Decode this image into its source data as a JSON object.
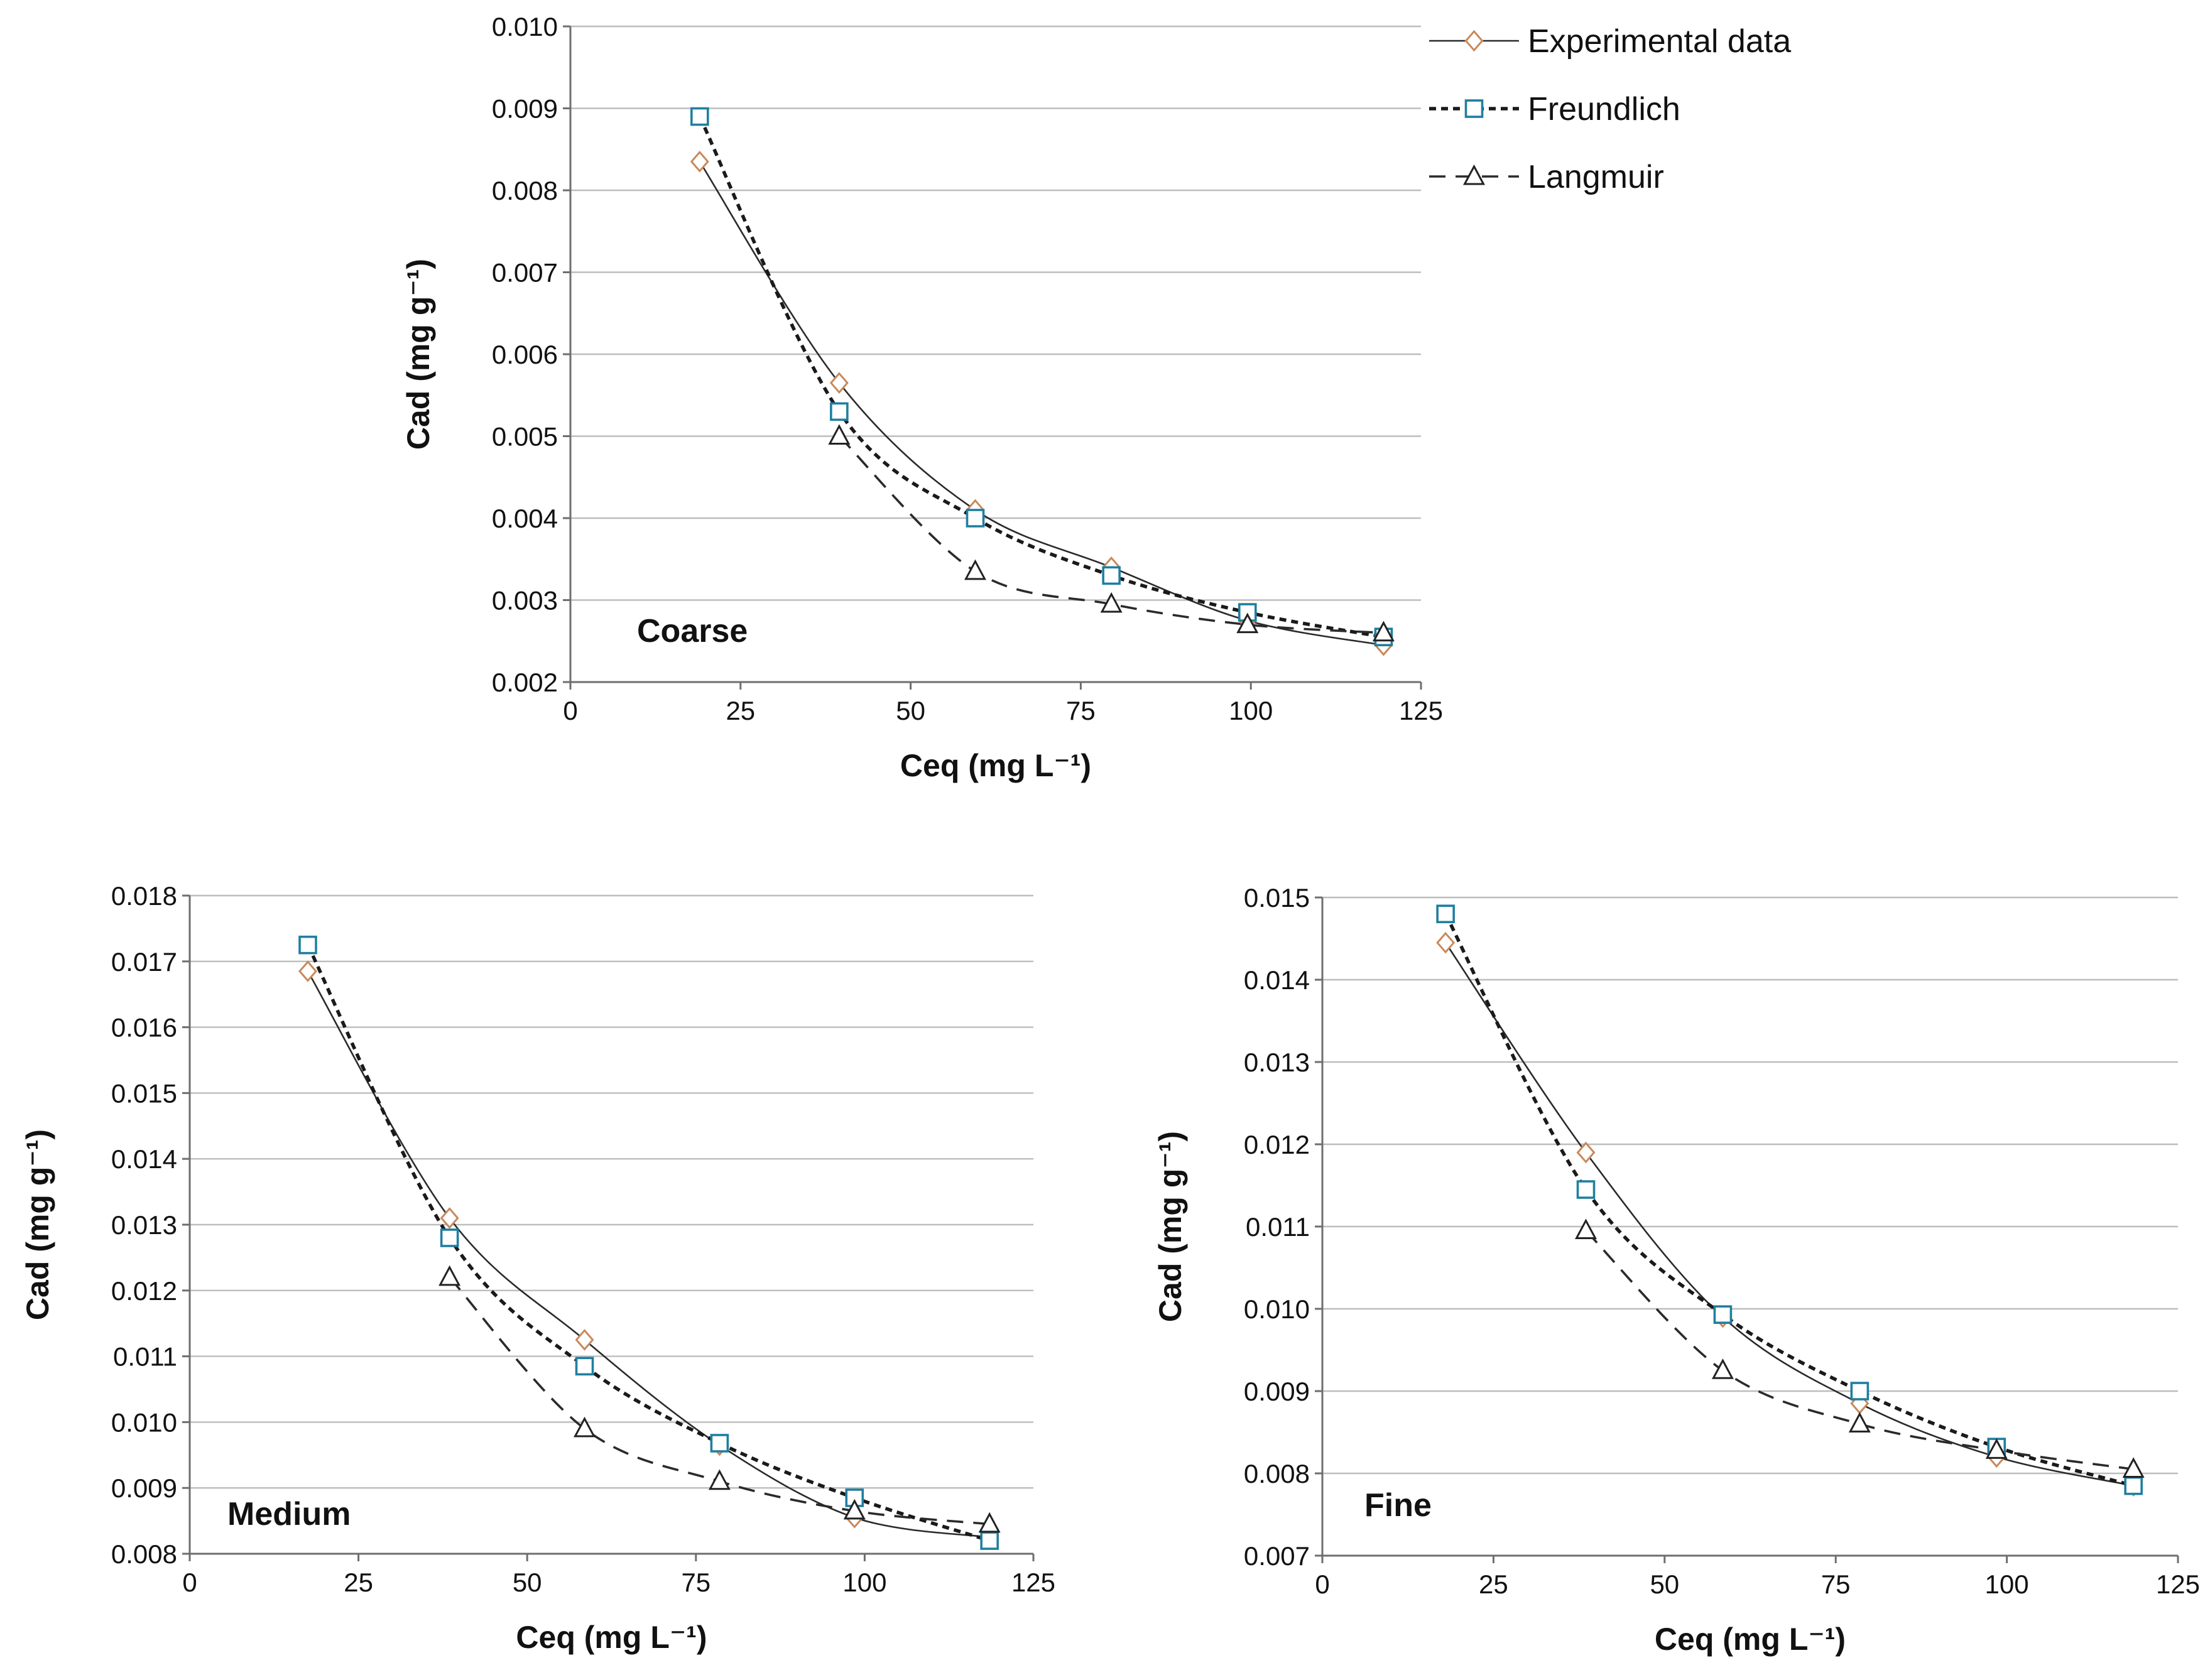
{
  "legend": {
    "items": [
      {
        "name": "Experimental data",
        "marker": "diamond",
        "line": "solid",
        "color": "#c9885a"
      },
      {
        "name": "Freundlich",
        "marker": "square",
        "line": "dotted",
        "color": "#1f7fa0"
      },
      {
        "name": "Langmuir",
        "marker": "triangle",
        "line": "dashed",
        "color": "#222222"
      }
    ]
  },
  "chart_data": [
    {
      "type": "line",
      "panel": "Coarse",
      "xlabel": "Ceq (mg L⁻¹)",
      "ylabel": "Cad (mg g⁻¹)",
      "xlim": [
        0,
        125
      ],
      "ylim": [
        0.002,
        0.01
      ],
      "xticks": [
        "0",
        "25",
        "50",
        "75",
        "100",
        "125"
      ],
      "yticks": [
        "0.002",
        "0.003",
        "0.004",
        "0.005",
        "0.006",
        "0.007",
        "0.008",
        "0.009",
        "0.010"
      ],
      "grid": true,
      "series": [
        {
          "name": "Experimental data",
          "x": [
            19,
            39.5,
            59.5,
            79.5,
            99.5,
            119.5
          ],
          "y": [
            0.00835,
            0.00565,
            0.0041,
            0.0034,
            0.00275,
            0.00245
          ]
        },
        {
          "name": "Freundlich",
          "x": [
            19,
            39.5,
            59.5,
            79.5,
            99.5,
            119.5
          ],
          "y": [
            0.0089,
            0.0053,
            0.004,
            0.0033,
            0.00285,
            0.00255
          ]
        },
        {
          "name": "Langmuir",
          "x": [
            39.5,
            59.5,
            79.5,
            99.5,
            119.5
          ],
          "y": [
            0.005,
            0.00335,
            0.00295,
            0.0027,
            0.0026
          ]
        }
      ]
    },
    {
      "type": "line",
      "panel": "Medium",
      "xlabel": "Ceq (mg L⁻¹)",
      "ylabel": "Cad (mg g⁻¹)",
      "xlim": [
        0,
        125
      ],
      "ylim": [
        0.008,
        0.018
      ],
      "xticks": [
        "0",
        "25",
        "50",
        "75",
        "100",
        "125"
      ],
      "yticks": [
        "0.008",
        "0.009",
        "0.010",
        "0.011",
        "0.012",
        "0.013",
        "0.014",
        "0.015",
        "0.016",
        "0.017",
        "0.018"
      ],
      "grid": true,
      "series": [
        {
          "name": "Experimental data",
          "x": [
            17.5,
            38.5,
            58.5,
            78.5,
            98.5,
            118.5
          ],
          "y": [
            0.01685,
            0.0131,
            0.01125,
            0.00965,
            0.00855,
            0.00825
          ]
        },
        {
          "name": "Freundlich",
          "x": [
            17.5,
            38.5,
            58.5,
            78.5,
            98.5,
            118.5
          ],
          "y": [
            0.01725,
            0.0128,
            0.01085,
            0.00968,
            0.00885,
            0.0082
          ]
        },
        {
          "name": "Langmuir",
          "x": [
            38.5,
            58.5,
            78.5,
            98.5,
            118.5
          ],
          "y": [
            0.0122,
            0.0099,
            0.0091,
            0.00865,
            0.00845
          ]
        }
      ]
    },
    {
      "type": "line",
      "panel": "Fine",
      "xlabel": "Ceq (mg L⁻¹)",
      "ylabel": "Cad (mg g⁻¹)",
      "xlim": [
        0,
        125
      ],
      "ylim": [
        0.007,
        0.015
      ],
      "xticks": [
        "0",
        "25",
        "50",
        "75",
        "100",
        "125"
      ],
      "yticks": [
        "0.007",
        "0.008",
        "0.009",
        "0.010",
        "0.011",
        "0.012",
        "0.013",
        "0.014",
        "0.015"
      ],
      "grid": true,
      "series": [
        {
          "name": "Experimental data",
          "x": [
            18,
            38.5,
            58.5,
            78.5,
            98.5,
            118.5
          ],
          "y": [
            0.01445,
            0.0119,
            0.0099,
            0.00885,
            0.0082,
            0.00785
          ]
        },
        {
          "name": "Freundlich",
          "x": [
            18,
            38.5,
            58.5,
            78.5,
            98.5,
            118.5
          ],
          "y": [
            0.0148,
            0.01145,
            0.00993,
            0.009,
            0.00832,
            0.00785
          ]
        },
        {
          "name": "Langmuir",
          "x": [
            38.5,
            58.5,
            78.5,
            98.5,
            118.5
          ],
          "y": [
            0.01095,
            0.00925,
            0.0086,
            0.00828,
            0.00805
          ]
        }
      ]
    }
  ]
}
